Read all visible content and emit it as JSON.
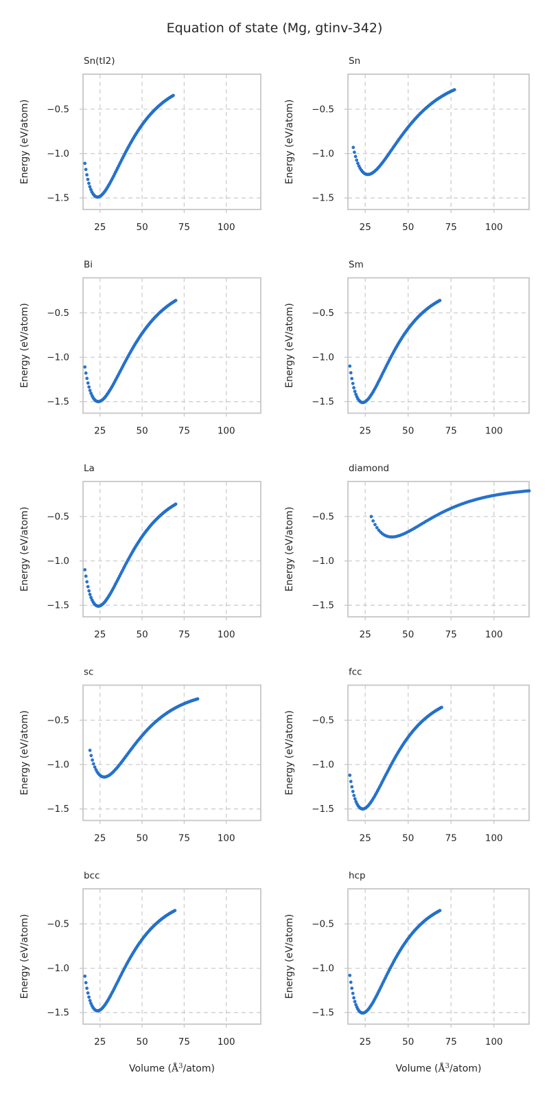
{
  "chart_data": {
    "type": "scatter",
    "title": "Equation of state (Mg, gtinv-342)",
    "layout": "5 rows x 2 columns, shared axis style",
    "xlabel": "Volume (Å³/atom)",
    "ylabel": "Energy (eV/atom)",
    "xlim": [
      14.9,
      120.5
    ],
    "ylim": [
      -1.63,
      -0.105
    ],
    "xticks": [
      25,
      50,
      75,
      100
    ],
    "yticks": [
      -0.5,
      -1.0,
      -1.5
    ],
    "gridlines": "dashed",
    "legend": "none",
    "subplots": [
      {
        "title": "Sn(tI2)",
        "curve": {
          "v_start": 16,
          "e_start": -1.11,
          "v0": 23.5,
          "e0": -1.49,
          "v_end": 68.5,
          "e_end": -0.345,
          "n_points": 90
        }
      },
      {
        "title": "Sn",
        "curve": {
          "v_start": 18,
          "e_start": -0.93,
          "v0": 26.5,
          "e0": -1.235,
          "v_end": 77,
          "e_end": -0.28,
          "n_points": 90
        }
      },
      {
        "title": "Bi",
        "curve": {
          "v_start": 16,
          "e_start": -1.11,
          "v0": 24,
          "e0": -1.5,
          "v_end": 70,
          "e_end": -0.36,
          "n_points": 90
        }
      },
      {
        "title": "Sm",
        "curve": {
          "v_start": 16,
          "e_start": -1.1,
          "v0": 23.5,
          "e0": -1.51,
          "v_end": 68.5,
          "e_end": -0.36,
          "n_points": 90
        }
      },
      {
        "title": "La",
        "curve": {
          "v_start": 16,
          "e_start": -1.1,
          "v0": 24,
          "e0": -1.51,
          "v_end": 70,
          "e_end": -0.36,
          "n_points": 90
        }
      },
      {
        "title": "diamond",
        "curve": {
          "v_start": 28.5,
          "e_start": -0.5,
          "v0": 40.5,
          "e0": -0.73,
          "v_end": 120.5,
          "e_end": -0.21,
          "n_points": 85
        }
      },
      {
        "title": "sc",
        "curve": {
          "v_start": 19,
          "e_start": -0.84,
          "v0": 27.5,
          "e0": -1.14,
          "v_end": 83,
          "e_end": -0.26,
          "n_points": 90
        }
      },
      {
        "title": "fcc",
        "curve": {
          "v_start": 16,
          "e_start": -1.12,
          "v0": 23.5,
          "e0": -1.5,
          "v_end": 69.5,
          "e_end": -0.355,
          "n_points": 90
        }
      },
      {
        "title": "bcc",
        "curve": {
          "v_start": 16,
          "e_start": -1.09,
          "v0": 23.5,
          "e0": -1.48,
          "v_end": 69.5,
          "e_end": -0.35,
          "n_points": 90
        }
      },
      {
        "title": "hcp",
        "curve": {
          "v_start": 16,
          "e_start": -1.08,
          "v0": 23.5,
          "e0": -1.505,
          "v_end": 68.5,
          "e_end": -0.35,
          "n_points": 90
        }
      }
    ]
  },
  "colors": {
    "marker": "#2575d2",
    "marker_edge": "#1d64b8",
    "grid": "#cdcdcd",
    "border": "#c6c6c6",
    "text": "#262626",
    "background": "#ffffff"
  }
}
